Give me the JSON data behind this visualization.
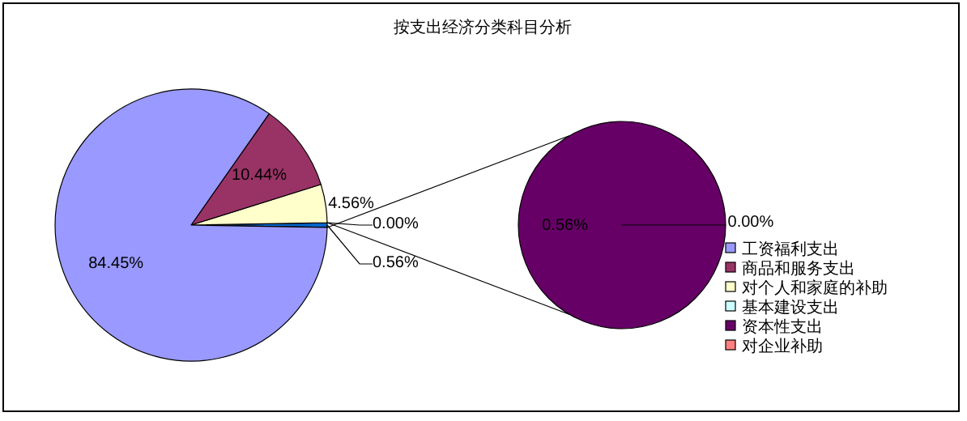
{
  "chart_data": [
    {
      "type": "pie",
      "title": "按支出经济分类科目分析",
      "categories": [
        "工资福利支出",
        "商品和服务支出",
        "对个人和家庭的补助",
        "基本建设支出",
        null
      ],
      "values": [
        84.45,
        10.44,
        4.56,
        0.0,
        0.56
      ],
      "colors": [
        "#9999ff",
        "#993366",
        "#ffffcc",
        "#ccffff",
        "#0066cc"
      ],
      "value_labels": [
        "84.45%",
        "10.44%",
        "4.56%",
        "0.00%",
        "0.56%"
      ],
      "legend": "right"
    },
    {
      "type": "pie",
      "categories": [
        "资本性支出",
        "对企业补助"
      ],
      "values": [
        0.56,
        0.0
      ],
      "colors": [
        "#660066",
        "#ff8080"
      ],
      "value_labels": [
        "0.56%",
        "0.00%"
      ],
      "legend": "right"
    }
  ]
}
